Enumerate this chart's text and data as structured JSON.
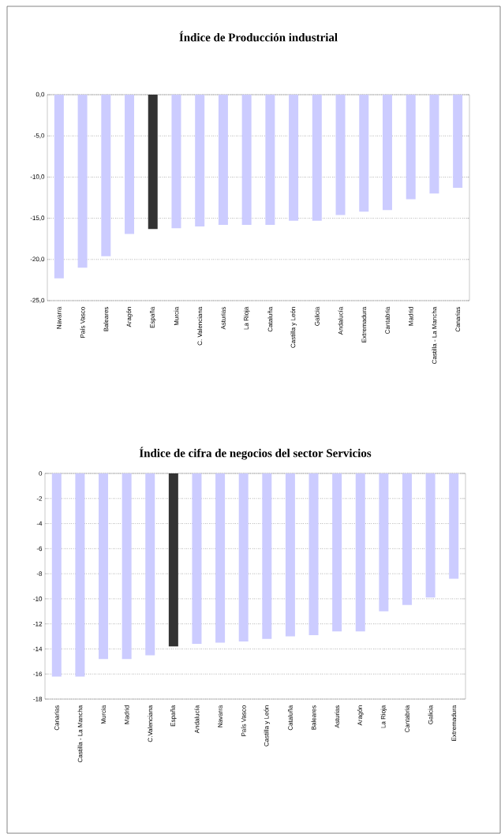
{
  "chart_data": [
    {
      "type": "bar",
      "title": "Índice de Producción industrial",
      "categories": [
        "Navarra",
        "País Vasco",
        "Baleares",
        "Aragón",
        "España",
        "Murcia",
        "C. Valenciana",
        "Asturias",
        "La Rioja",
        "Cataluña",
        "Castilla y León",
        "Galicia",
        "Andalucía",
        "Extremadura",
        "Cantabria",
        "Madrid",
        "Castilla - La Mancha",
        "Canarias"
      ],
      "values": [
        -22.3,
        -21.0,
        -19.6,
        -16.9,
        -16.3,
        -16.2,
        -16.0,
        -15.8,
        -15.8,
        -15.8,
        -15.3,
        -15.3,
        -14.6,
        -14.2,
        -14.0,
        -12.7,
        -12.0,
        -11.3
      ],
      "colors": [
        "#ccccff",
        "#ccccff",
        "#ccccff",
        "#ccccff",
        "#333333",
        "#ccccff",
        "#ccccff",
        "#ccccff",
        "#ccccff",
        "#ccccff",
        "#ccccff",
        "#ccccff",
        "#ccccff",
        "#ccccff",
        "#ccccff",
        "#ccccff",
        "#ccccff",
        "#ccccff"
      ],
      "ylim": [
        -25,
        0
      ],
      "yticks": [
        {
          "value": -25,
          "label": "-25,0"
        },
        {
          "value": -20,
          "label": "-20,0"
        },
        {
          "value": -15,
          "label": "-15,0"
        },
        {
          "value": -10,
          "label": "-10,0"
        },
        {
          "value": -5,
          "label": "-5,0"
        },
        {
          "value": 0,
          "label": "0,0"
        }
      ],
      "grid": "y"
    },
    {
      "type": "bar",
      "title": "Índice de cifra de negocios del sector Servicios",
      "categories": [
        "Canarias",
        "Castilla - La Mancha",
        "Murcia",
        "Madrid",
        "C.Valenciana",
        "España",
        "Andalucía",
        "Navarra",
        "País Vasco",
        "Castilla y León",
        "Cataluña",
        "Baleares",
        "Asturias",
        "Aragón",
        "La Rioja",
        "Cantabria",
        "Galicia",
        "Extremadura"
      ],
      "values": [
        -16.2,
        -16.2,
        -14.8,
        -14.8,
        -14.5,
        -13.8,
        -13.6,
        -13.5,
        -13.4,
        -13.2,
        -13.0,
        -12.9,
        -12.6,
        -12.6,
        -11.0,
        -10.5,
        -9.9,
        -8.4
      ],
      "colors": [
        "#ccccff",
        "#ccccff",
        "#ccccff",
        "#ccccff",
        "#ccccff",
        "#333333",
        "#ccccff",
        "#ccccff",
        "#ccccff",
        "#ccccff",
        "#ccccff",
        "#ccccff",
        "#ccccff",
        "#ccccff",
        "#ccccff",
        "#ccccff",
        "#ccccff",
        "#ccccff"
      ],
      "ylim": [
        -18,
        0
      ],
      "yticks": [
        -18,
        -16,
        -14,
        -12,
        -10,
        -8,
        -6,
        -4,
        -2,
        0
      ],
      "grid": "y"
    }
  ]
}
